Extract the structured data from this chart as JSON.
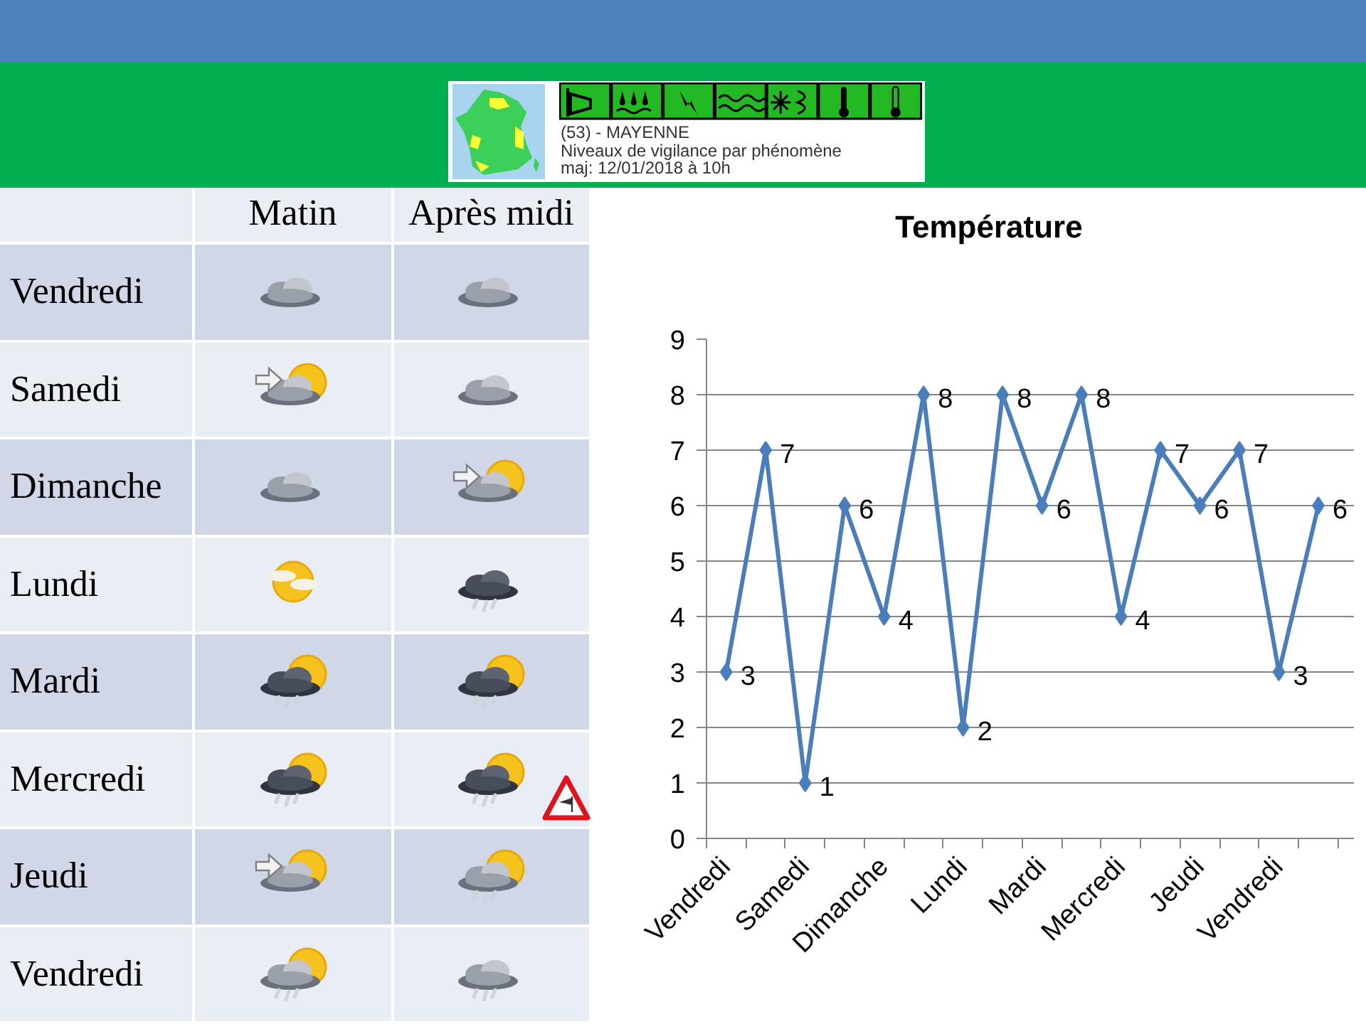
{
  "chart_data": [
    {
      "type": "other",
      "annotations": [
        "(53) - MAYENNE",
        "Niveaux de vigilance par phénomène",
        "maj: 12/01/2018 à 10h"
      ]
    },
    {
      "type": "other",
      "categories": [
        "Matin",
        "Après midi"
      ],
      "y_categories": [
        "Vendredi",
        "Samedi",
        "Dimanche",
        "Lundi",
        "Mardi",
        "Mercredi",
        "Jeudi",
        "Vendredi"
      ]
    },
    {
      "type": "line",
      "title": "Température",
      "categories": [
        "Vendredi",
        null,
        "Samedi",
        null,
        "Dimanche",
        null,
        "Lundi",
        null,
        "Mardi",
        null,
        "Mercredi",
        null,
        "Jeudi",
        null,
        "Vendredi",
        null
      ],
      "values": [
        3,
        7,
        1,
        6,
        4,
        8,
        2,
        8,
        6,
        8,
        4,
        7,
        6,
        7,
        3,
        6
      ],
      "color": "#4a7ebb",
      "ylim": [
        0,
        9
      ],
      "yticks": [
        0,
        1,
        2,
        3,
        4,
        5,
        6,
        7,
        8,
        9
      ],
      "grid": "y",
      "marker": "diamond",
      "line_style": "solid",
      "data_labels": true
    }
  ]
}
